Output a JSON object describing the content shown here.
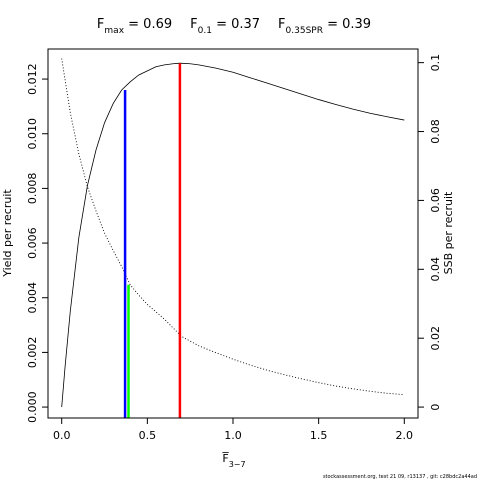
{
  "chart_data": {
    "type": "line",
    "title_parts": [
      {
        "base": "F",
        "sub": "max",
        "rest": " = 0.69"
      },
      {
        "base": "F",
        "sub": "0.1",
        "rest": " = 0.37"
      },
      {
        "base": "F",
        "sub": "0.35SPR",
        "rest": " = 0.39"
      }
    ],
    "xlabel": {
      "base": "F",
      "sub": "3−7"
    },
    "ylabel_left": "Yield per recruit",
    "ylabel_right": "SSB per recruit",
    "xlim": [
      -0.08,
      2.08
    ],
    "ylim_left": [
      -0.0004,
      0.0131
    ],
    "ylim_right": [
      -0.00317,
      0.10396
    ],
    "xticks": [
      0,
      0.5,
      1,
      1.5,
      2
    ],
    "xtick_labels": [
      "0.0",
      "0.5",
      "1.0",
      "1.5",
      "2.0"
    ],
    "yticks_left": [
      0,
      0.002,
      0.004,
      0.006,
      0.008,
      0.01,
      0.012
    ],
    "ytick_labels_left": [
      "0.000",
      "0.002",
      "0.004",
      "0.006",
      "0.008",
      "0.010",
      "0.012"
    ],
    "yticks_right": [
      0,
      0.02,
      0.04,
      0.06,
      0.08,
      0.1
    ],
    "ytick_labels_right": [
      "0",
      "0.02",
      "0.04",
      "0.06",
      "0.08",
      "0.1"
    ],
    "series": [
      {
        "axis": "left",
        "style": "solid",
        "color": "#000000",
        "x": [
          0,
          0.02,
          0.05,
          0.1,
          0.15,
          0.2,
          0.25,
          0.3,
          0.35,
          0.4,
          0.45,
          0.5,
          0.55,
          0.6,
          0.65,
          0.69,
          0.75,
          0.8,
          0.9,
          1.0,
          1.1,
          1.2,
          1.3,
          1.4,
          1.5,
          1.6,
          1.7,
          1.8,
          1.9,
          2.0
        ],
        "y": [
          0,
          0.0015,
          0.0035,
          0.0062,
          0.0081,
          0.0094,
          0.0104,
          0.0111,
          0.0116,
          0.0119,
          0.01215,
          0.0123,
          0.01245,
          0.01252,
          0.01256,
          0.01258,
          0.01256,
          0.01252,
          0.0124,
          0.01225,
          0.01205,
          0.01185,
          0.01165,
          0.01145,
          0.01125,
          0.01107,
          0.0109,
          0.01075,
          0.01062,
          0.0105
        ]
      },
      {
        "axis": "right",
        "style": "dotted",
        "color": "#000000",
        "x": [
          0,
          0.05,
          0.1,
          0.15,
          0.2,
          0.25,
          0.3,
          0.35,
          0.4,
          0.45,
          0.5,
          0.6,
          0.7,
          0.8,
          0.9,
          1.0,
          1.1,
          1.2,
          1.3,
          1.4,
          1.5,
          1.6,
          1.7,
          1.8,
          1.9,
          2.0
        ],
        "y": [
          0.1012,
          0.0855,
          0.0735,
          0.064,
          0.057,
          0.0505,
          0.0455,
          0.0408,
          0.0355,
          0.0325,
          0.0298,
          0.0255,
          0.0205,
          0.0178,
          0.0158,
          0.0139,
          0.0122,
          0.0107,
          0.0094,
          0.0082,
          0.0071,
          0.0061,
          0.0053,
          0.0046,
          0.004,
          0.0036
        ]
      }
    ],
    "reference_lines": [
      {
        "x": 0.69,
        "axis": "left",
        "y_top": 0.01258,
        "color": "#ff0000",
        "label": "Fmax"
      },
      {
        "x": 0.37,
        "axis": "left",
        "y_top": 0.0116,
        "color": "#0000ff",
        "label": "F0.1"
      },
      {
        "x": 0.39,
        "axis": "right",
        "y_top": 0.0355,
        "color": "#00ff00",
        "label": "F0.35SPR"
      }
    ],
    "grid": false,
    "footnote": "stockassessment.org, test 21 09, r13137 , git: c28bdc2a44ad"
  }
}
